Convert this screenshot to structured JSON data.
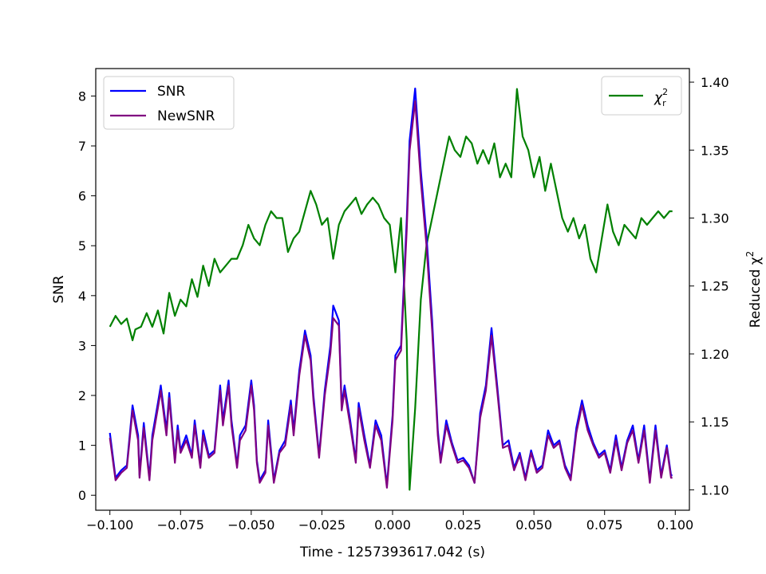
{
  "chart_data": {
    "type": "line",
    "xlabel": "Time - 1257393617.042 (s)",
    "ylabel_left": "SNR",
    "ylabel_right_base": "Reduced χ",
    "ylabel_right_sup": "2",
    "xlim": [
      -0.105,
      0.105
    ],
    "ylim_left": [
      -0.3,
      8.55
    ],
    "ylim_right": [
      1.085,
      1.41
    ],
    "x_ticks": [
      -0.1,
      -0.075,
      -0.05,
      -0.025,
      0.0,
      0.025,
      0.05,
      0.075,
      0.1
    ],
    "x_tick_labels": [
      "−0.100",
      "−0.075",
      "−0.050",
      "−0.025",
      "0.000",
      "0.025",
      "0.050",
      "0.075",
      "0.100"
    ],
    "y_left_ticks": [
      0,
      1,
      2,
      3,
      4,
      5,
      6,
      7,
      8
    ],
    "y_left_tick_labels": [
      "0",
      "1",
      "2",
      "3",
      "4",
      "5",
      "6",
      "7",
      "8"
    ],
    "y_right_ticks": [
      1.1,
      1.15,
      1.2,
      1.25,
      1.3,
      1.35,
      1.4
    ],
    "y_right_tick_labels": [
      "1.10",
      "1.15",
      "1.20",
      "1.25",
      "1.30",
      "1.35",
      "1.40"
    ],
    "grid": false,
    "legend_left_placement": "upper-left",
    "legend_right_placement": "upper-right",
    "series": [
      {
        "name": "SNR",
        "color": "#0000ff",
        "axis": "left",
        "x": [
          -0.1,
          -0.098,
          -0.096,
          -0.094,
          -0.092,
          -0.09,
          -0.0895,
          -0.088,
          -0.086,
          -0.085,
          -0.083,
          -0.082,
          -0.08,
          -0.079,
          -0.077,
          -0.076,
          -0.075,
          -0.073,
          -0.071,
          -0.07,
          -0.068,
          -0.067,
          -0.065,
          -0.063,
          -0.061,
          -0.06,
          -0.058,
          -0.057,
          -0.055,
          -0.054,
          -0.052,
          -0.05,
          -0.049,
          -0.048,
          -0.047,
          -0.045,
          -0.044,
          -0.042,
          -0.04,
          -0.038,
          -0.036,
          -0.035,
          -0.033,
          -0.031,
          -0.029,
          -0.028,
          -0.026,
          -0.024,
          -0.022,
          -0.021,
          -0.019,
          -0.018,
          -0.017,
          -0.015,
          -0.013,
          -0.012,
          -0.01,
          -0.008,
          -0.006,
          -0.004,
          -0.002,
          0.0,
          0.001,
          0.003,
          0.005,
          0.006,
          0.008,
          0.01,
          0.012,
          0.014,
          0.016,
          0.017,
          0.019,
          0.021,
          0.023,
          0.025,
          0.027,
          0.029,
          0.031,
          0.033,
          0.035,
          0.037,
          0.039,
          0.041,
          0.043,
          0.045,
          0.047,
          0.049,
          0.051,
          0.053,
          0.055,
          0.057,
          0.059,
          0.061,
          0.063,
          0.065,
          0.067,
          0.069,
          0.071,
          0.073,
          0.075,
          0.077,
          0.079,
          0.081,
          0.083,
          0.085,
          0.087,
          0.089,
          0.091,
          0.093,
          0.095,
          0.097,
          0.0985,
          0.099
        ],
        "y": [
          1.25,
          0.35,
          0.5,
          0.6,
          1.8,
          1.2,
          0.4,
          1.45,
          0.35,
          1.2,
          1.85,
          2.2,
          1.3,
          2.05,
          0.7,
          1.4,
          0.9,
          1.2,
          0.8,
          1.5,
          0.6,
          1.3,
          0.8,
          0.9,
          2.2,
          1.5,
          2.3,
          1.5,
          0.6,
          1.2,
          1.4,
          2.3,
          1.8,
          0.7,
          0.3,
          0.5,
          1.5,
          0.3,
          0.9,
          1.1,
          1.9,
          1.3,
          2.5,
          3.3,
          2.8,
          2.0,
          0.8,
          2.1,
          3.0,
          3.8,
          3.5,
          1.8,
          2.2,
          1.5,
          0.7,
          1.85,
          1.2,
          0.6,
          1.5,
          1.2,
          0.2,
          1.6,
          2.8,
          3.0,
          5.5,
          7.1,
          8.15,
          6.5,
          5.2,
          3.5,
          1.3,
          0.7,
          1.5,
          1.05,
          0.7,
          0.75,
          0.6,
          0.25,
          1.65,
          2.2,
          3.35,
          2.2,
          1.0,
          1.1,
          0.55,
          0.85,
          0.35,
          0.9,
          0.5,
          0.6,
          1.3,
          1.0,
          1.1,
          0.6,
          0.35,
          1.35,
          1.9,
          1.4,
          1.05,
          0.8,
          0.9,
          0.5,
          1.2,
          0.55,
          1.1,
          1.4,
          0.7,
          1.4,
          0.3,
          1.4,
          0.4,
          1.0,
          0.4,
          0.4
        ]
      },
      {
        "name": "NewSNR",
        "color": "#800080",
        "axis": "left",
        "x": [
          -0.1,
          -0.098,
          -0.096,
          -0.094,
          -0.092,
          -0.09,
          -0.0895,
          -0.088,
          -0.086,
          -0.085,
          -0.083,
          -0.082,
          -0.08,
          -0.079,
          -0.077,
          -0.076,
          -0.075,
          -0.073,
          -0.071,
          -0.07,
          -0.068,
          -0.067,
          -0.065,
          -0.063,
          -0.061,
          -0.06,
          -0.058,
          -0.057,
          -0.055,
          -0.054,
          -0.052,
          -0.05,
          -0.049,
          -0.048,
          -0.047,
          -0.045,
          -0.044,
          -0.042,
          -0.04,
          -0.038,
          -0.036,
          -0.035,
          -0.033,
          -0.031,
          -0.029,
          -0.028,
          -0.026,
          -0.024,
          -0.022,
          -0.021,
          -0.019,
          -0.018,
          -0.017,
          -0.015,
          -0.013,
          -0.012,
          -0.01,
          -0.008,
          -0.006,
          -0.004,
          -0.002,
          0.0,
          0.001,
          0.003,
          0.005,
          0.006,
          0.008,
          0.01,
          0.012,
          0.014,
          0.016,
          0.017,
          0.019,
          0.021,
          0.023,
          0.025,
          0.027,
          0.029,
          0.031,
          0.033,
          0.035,
          0.037,
          0.039,
          0.041,
          0.043,
          0.045,
          0.047,
          0.049,
          0.051,
          0.053,
          0.055,
          0.057,
          0.059,
          0.061,
          0.063,
          0.065,
          0.067,
          0.069,
          0.071,
          0.073,
          0.075,
          0.077,
          0.079,
          0.081,
          0.083,
          0.085,
          0.087,
          0.089,
          0.091,
          0.093,
          0.095,
          0.097,
          0.0985,
          0.099
        ],
        "y": [
          1.15,
          0.3,
          0.45,
          0.55,
          1.7,
          1.1,
          0.35,
          1.35,
          0.3,
          1.1,
          1.75,
          2.1,
          1.2,
          1.95,
          0.65,
          1.3,
          0.85,
          1.1,
          0.75,
          1.4,
          0.55,
          1.2,
          0.75,
          0.85,
          2.1,
          1.4,
          2.2,
          1.4,
          0.55,
          1.1,
          1.3,
          2.2,
          1.7,
          0.65,
          0.25,
          0.45,
          1.4,
          0.25,
          0.85,
          1.0,
          1.8,
          1.2,
          2.4,
          3.2,
          2.7,
          1.9,
          0.75,
          2.0,
          2.85,
          3.55,
          3.4,
          1.7,
          2.1,
          1.4,
          0.65,
          1.75,
          1.1,
          0.55,
          1.4,
          1.1,
          0.15,
          1.5,
          2.7,
          2.9,
          5.3,
          6.9,
          7.9,
          6.3,
          5.0,
          3.3,
          1.2,
          0.65,
          1.4,
          1.0,
          0.65,
          0.7,
          0.55,
          0.25,
          1.55,
          2.1,
          3.2,
          2.1,
          0.95,
          1.0,
          0.5,
          0.8,
          0.3,
          0.85,
          0.45,
          0.55,
          1.2,
          0.95,
          1.05,
          0.55,
          0.3,
          1.25,
          1.8,
          1.3,
          1.0,
          0.75,
          0.85,
          0.45,
          1.1,
          0.5,
          1.05,
          1.3,
          0.65,
          1.3,
          0.25,
          1.3,
          0.35,
          0.95,
          0.35,
          0.35
        ]
      },
      {
        "name": "χ",
        "name_sup": "2",
        "name_sub": "r",
        "color": "#008000",
        "axis": "right",
        "x": [
          -0.1,
          -0.098,
          -0.096,
          -0.094,
          -0.092,
          -0.091,
          -0.089,
          -0.087,
          -0.085,
          -0.083,
          -0.081,
          -0.079,
          -0.077,
          -0.075,
          -0.073,
          -0.071,
          -0.069,
          -0.067,
          -0.065,
          -0.063,
          -0.061,
          -0.059,
          -0.057,
          -0.055,
          -0.053,
          -0.051,
          -0.049,
          -0.047,
          -0.045,
          -0.043,
          -0.041,
          -0.039,
          -0.037,
          -0.035,
          -0.033,
          -0.031,
          -0.029,
          -0.027,
          -0.025,
          -0.023,
          -0.021,
          -0.019,
          -0.017,
          -0.015,
          -0.013,
          -0.011,
          -0.009,
          -0.007,
          -0.005,
          -0.003,
          -0.001,
          0.001,
          0.003,
          0.005,
          0.006,
          0.008,
          0.01,
          0.012,
          0.014,
          0.016,
          0.018,
          0.02,
          0.022,
          0.024,
          0.026,
          0.028,
          0.03,
          0.032,
          0.034,
          0.036,
          0.038,
          0.04,
          0.042,
          0.044,
          0.046,
          0.048,
          0.05,
          0.052,
          0.054,
          0.056,
          0.058,
          0.06,
          0.062,
          0.064,
          0.066,
          0.068,
          0.07,
          0.072,
          0.074,
          0.076,
          0.078,
          0.08,
          0.082,
          0.084,
          0.086,
          0.088,
          0.09,
          0.092,
          0.094,
          0.096,
          0.098,
          0.099
        ],
        "y": [
          1.22,
          1.228,
          1.222,
          1.226,
          1.21,
          1.218,
          1.22,
          1.23,
          1.22,
          1.232,
          1.215,
          1.245,
          1.228,
          1.24,
          1.235,
          1.255,
          1.242,
          1.265,
          1.25,
          1.27,
          1.26,
          1.265,
          1.27,
          1.27,
          1.28,
          1.295,
          1.285,
          1.28,
          1.295,
          1.305,
          1.3,
          1.3,
          1.275,
          1.285,
          1.29,
          1.305,
          1.32,
          1.31,
          1.295,
          1.3,
          1.27,
          1.295,
          1.305,
          1.31,
          1.315,
          1.303,
          1.31,
          1.315,
          1.31,
          1.3,
          1.295,
          1.26,
          1.3,
          1.21,
          1.1,
          1.16,
          1.24,
          1.28,
          1.3,
          1.32,
          1.34,
          1.36,
          1.35,
          1.345,
          1.36,
          1.355,
          1.34,
          1.35,
          1.34,
          1.355,
          1.33,
          1.34,
          1.33,
          1.395,
          1.36,
          1.35,
          1.33,
          1.345,
          1.32,
          1.34,
          1.32,
          1.3,
          1.29,
          1.3,
          1.285,
          1.295,
          1.27,
          1.26,
          1.285,
          1.31,
          1.29,
          1.28,
          1.295,
          1.29,
          1.285,
          1.3,
          1.295,
          1.3,
          1.305,
          1.3,
          1.305,
          1.305
        ]
      }
    ]
  }
}
